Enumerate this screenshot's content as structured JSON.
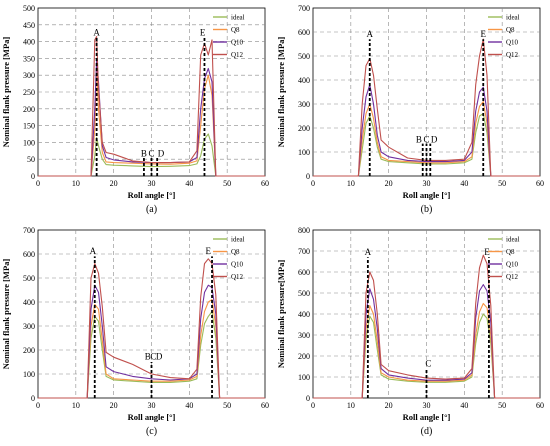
{
  "colors": {
    "ideal": "#9bbb59",
    "Q8": "#f79646",
    "Q10": "#7030a0",
    "Q12": "#c0504d",
    "grid": "#8a8a8a",
    "axis": "#000000",
    "marker": "#000000"
  },
  "chart_data": [
    {
      "type": "line",
      "panel_label": "(a)",
      "xlabel": "Roll angle [°]",
      "ylabel": "Nominal flank pressure [MPa]",
      "xlim": [
        0,
        60
      ],
      "ylim": [
        0,
        500
      ],
      "xticks": [
        0,
        10,
        20,
        30,
        40,
        50,
        60
      ],
      "yticks": [
        0,
        50,
        100,
        150,
        200,
        250,
        300,
        350,
        400,
        450,
        500
      ],
      "grid": "dashed",
      "legend_position": "top-right",
      "annotations": [
        {
          "text": "A",
          "x": 15.5,
          "y": 418
        },
        {
          "text": "B",
          "x": 28,
          "y": 58
        },
        {
          "text": "C",
          "x": 30,
          "y": 58
        },
        {
          "text": "D",
          "x": 32.5,
          "y": 58
        },
        {
          "text": "E",
          "x": 43.5,
          "y": 418
        }
      ],
      "markers": [
        {
          "x": 15.5,
          "y0": 0,
          "y1": 412
        },
        {
          "x": 28,
          "y0": 0,
          "y1": 55
        },
        {
          "x": 30,
          "y0": 0,
          "y1": 55
        },
        {
          "x": 31.5,
          "y0": 0,
          "y1": 55
        },
        {
          "x": 44,
          "y0": 0,
          "y1": 412
        }
      ],
      "series": [
        {
          "name": "ideal",
          "color_key": "ideal",
          "x": [
            0,
            13,
            14,
            15,
            15.5,
            16,
            17,
            18,
            20,
            25,
            30,
            35,
            40,
            42,
            43,
            44,
            45,
            46,
            47,
            60
          ],
          "y": [
            0,
            0,
            0,
            60,
            115,
            90,
            50,
            34,
            32,
            30,
            28,
            29,
            31,
            36,
            60,
            110,
            125,
            90,
            0,
            0
          ]
        },
        {
          "name": "Q8",
          "color_key": "Q8",
          "x": [
            0,
            13,
            14,
            15,
            15.5,
            16,
            17,
            18,
            20,
            25,
            30,
            35,
            40,
            42,
            43,
            44,
            45,
            46,
            47,
            60
          ],
          "y": [
            0,
            0,
            0,
            140,
            330,
            200,
            70,
            42,
            40,
            38,
            36,
            35,
            38,
            45,
            150,
            260,
            300,
            240,
            0,
            0
          ]
        },
        {
          "name": "Q10",
          "color_key": "Q10",
          "x": [
            0,
            13,
            14,
            15,
            15.5,
            16,
            17,
            18,
            20,
            25,
            30,
            35,
            40,
            42,
            43,
            44,
            45,
            46,
            47,
            60
          ],
          "y": [
            0,
            0,
            0,
            200,
            345,
            280,
            90,
            55,
            48,
            42,
            40,
            40,
            42,
            55,
            200,
            290,
            320,
            280,
            0,
            0
          ]
        },
        {
          "name": "Q12",
          "color_key": "Q12",
          "x": [
            0,
            13,
            14,
            15,
            15.5,
            16,
            17,
            18,
            20,
            25,
            30,
            35,
            40,
            42,
            43,
            44,
            45,
            46,
            47,
            60
          ],
          "y": [
            0,
            0,
            0,
            405,
            415,
            260,
            100,
            70,
            65,
            45,
            40,
            40,
            42,
            75,
            360,
            395,
            360,
            405,
            0,
            0
          ]
        }
      ]
    },
    {
      "type": "line",
      "panel_label": "(b)",
      "xlabel": "Roll angle [°]",
      "ylabel": "Nominal flank pressure [MPa]",
      "xlim": [
        0,
        60
      ],
      "ylim": [
        0,
        700
      ],
      "xticks": [
        0,
        10,
        20,
        30,
        40,
        50,
        60
      ],
      "yticks": [
        0,
        100,
        200,
        300,
        400,
        500,
        600,
        700
      ],
      "grid": "dashed",
      "legend_position": "top-right",
      "annotations": [
        {
          "text": "A",
          "x": 15,
          "y": 580
        },
        {
          "text": "B",
          "x": 28,
          "y": 140
        },
        {
          "text": "C",
          "x": 30,
          "y": 140
        },
        {
          "text": "D",
          "x": 32,
          "y": 140
        },
        {
          "text": "E",
          "x": 45,
          "y": 580
        }
      ],
      "markers": [
        {
          "x": 15,
          "y0": 0,
          "y1": 570
        },
        {
          "x": 29,
          "y0": 0,
          "y1": 135
        },
        {
          "x": 30,
          "y0": 0,
          "y1": 135
        },
        {
          "x": 31,
          "y0": 0,
          "y1": 135
        },
        {
          "x": 45,
          "y0": 0,
          "y1": 570
        }
      ],
      "series": [
        {
          "name": "ideal",
          "color_key": "ideal",
          "x": [
            0,
            11,
            12,
            13,
            14,
            15,
            16,
            17,
            18,
            20,
            25,
            30,
            35,
            40,
            42,
            43,
            44,
            45,
            46,
            47,
            60
          ],
          "y": [
            0,
            0,
            0,
            110,
            220,
            250,
            200,
            120,
            70,
            60,
            55,
            50,
            50,
            55,
            70,
            180,
            250,
            260,
            180,
            0,
            0
          ]
        },
        {
          "name": "Q8",
          "color_key": "Q8",
          "x": [
            0,
            11,
            12,
            13,
            14,
            15,
            16,
            17,
            18,
            20,
            25,
            30,
            35,
            40,
            42,
            43,
            44,
            45,
            46,
            47,
            60
          ],
          "y": [
            0,
            0,
            0,
            150,
            260,
            300,
            240,
            140,
            80,
            65,
            60,
            55,
            55,
            60,
            80,
            220,
            290,
            310,
            220,
            0,
            0
          ]
        },
        {
          "name": "Q10",
          "color_key": "Q10",
          "x": [
            0,
            11,
            12,
            13,
            14,
            15,
            16,
            17,
            18,
            20,
            25,
            30,
            35,
            40,
            42,
            43,
            44,
            45,
            46,
            47,
            60
          ],
          "y": [
            0,
            0,
            0,
            200,
            330,
            380,
            300,
            170,
            100,
            80,
            65,
            60,
            60,
            65,
            100,
            270,
            350,
            370,
            270,
            0,
            0
          ]
        },
        {
          "name": "Q12",
          "color_key": "Q12",
          "x": [
            0,
            11,
            12,
            13,
            14,
            15,
            16,
            17,
            18,
            20,
            25,
            30,
            35,
            40,
            42,
            43,
            44,
            45,
            46,
            47,
            60
          ],
          "y": [
            0,
            0,
            0,
            300,
            460,
            490,
            420,
            280,
            150,
            120,
            75,
            65,
            65,
            70,
            140,
            380,
            500,
            570,
            420,
            0,
            0
          ]
        }
      ]
    },
    {
      "type": "line",
      "panel_label": "(c)",
      "xlabel": "Roll angle [°]",
      "ylabel": "Nominal flank pressure [MPa]",
      "xlim": [
        0,
        60
      ],
      "ylim": [
        0,
        700
      ],
      "xticks": [
        0,
        10,
        20,
        30,
        40,
        50,
        60
      ],
      "yticks": [
        0,
        100,
        200,
        300,
        400,
        500,
        600,
        700
      ],
      "grid": "dashed",
      "legend_position": "top-right",
      "annotations": [
        {
          "text": "A",
          "x": 14.5,
          "y": 600
        },
        {
          "text": "B",
          "x": 29,
          "y": 160
        },
        {
          "text": "C",
          "x": 30.5,
          "y": 160
        },
        {
          "text": "D",
          "x": 32,
          "y": 160
        },
        {
          "text": "E",
          "x": 45,
          "y": 600
        }
      ],
      "markers": [
        {
          "x": 15,
          "y0": 0,
          "y1": 590
        },
        {
          "x": 30,
          "y0": 0,
          "y1": 150
        },
        {
          "x": 46,
          "y0": 0,
          "y1": 590
        }
      ],
      "series": [
        {
          "name": "ideal",
          "color_key": "ideal",
          "x": [
            0,
            12,
            13,
            14,
            15,
            16,
            17,
            18,
            20,
            25,
            30,
            35,
            40,
            42,
            43,
            44,
            45,
            46,
            47,
            48,
            60
          ],
          "y": [
            0,
            0,
            0,
            250,
            340,
            320,
            200,
            90,
            75,
            70,
            65,
            65,
            70,
            80,
            220,
            310,
            340,
            360,
            250,
            0,
            0
          ]
        },
        {
          "name": "Q8",
          "color_key": "Q8",
          "x": [
            0,
            12,
            13,
            14,
            15,
            16,
            17,
            18,
            20,
            25,
            30,
            35,
            40,
            42,
            43,
            44,
            45,
            46,
            47,
            48,
            60
          ],
          "y": [
            0,
            0,
            0,
            300,
            390,
            370,
            240,
            100,
            80,
            75,
            70,
            70,
            75,
            90,
            260,
            360,
            400,
            410,
            300,
            0,
            0
          ]
        },
        {
          "name": "Q10",
          "color_key": "Q10",
          "x": [
            0,
            12,
            13,
            14,
            15,
            16,
            17,
            18,
            20,
            25,
            30,
            35,
            40,
            42,
            43,
            44,
            45,
            46,
            47,
            48,
            60
          ],
          "y": [
            0,
            0,
            0,
            370,
            470,
            440,
            300,
            130,
            110,
            90,
            80,
            75,
            80,
            100,
            330,
            440,
            470,
            460,
            350,
            0,
            0
          ]
        },
        {
          "name": "Q12",
          "color_key": "Q12",
          "x": [
            0,
            12,
            13,
            14,
            15,
            16,
            17,
            18,
            20,
            25,
            30,
            35,
            40,
            42,
            43,
            44,
            45,
            46,
            47,
            48,
            60
          ],
          "y": [
            0,
            0,
            0,
            500,
            560,
            520,
            380,
            190,
            170,
            140,
            100,
            85,
            80,
            120,
            420,
            560,
            580,
            560,
            430,
            0,
            0
          ]
        }
      ]
    },
    {
      "type": "line",
      "panel_label": "(d)",
      "xlabel": "Roll angle [°]",
      "ylabel": "Nominal flank pressure[MPa]",
      "xlim": [
        0,
        60
      ],
      "ylim": [
        0,
        800
      ],
      "xticks": [
        0,
        10,
        20,
        30,
        40,
        50,
        60
      ],
      "yticks": [
        0,
        100,
        200,
        300,
        400,
        500,
        600,
        700,
        800
      ],
      "grid": "dashed",
      "legend_position": "top-right",
      "annotations": [
        {
          "text": "A",
          "x": 14.5,
          "y": 680
        },
        {
          "text": "C",
          "x": 30.5,
          "y": 150
        },
        {
          "text": "E",
          "x": 46,
          "y": 680
        }
      ],
      "markers": [
        {
          "x": 14.5,
          "y0": 0,
          "y1": 670
        },
        {
          "x": 30,
          "y0": 0,
          "y1": 140
        },
        {
          "x": 46.5,
          "y0": 0,
          "y1": 670
        }
      ],
      "series": [
        {
          "name": "ideal",
          "color_key": "ideal",
          "x": [
            0,
            12,
            13,
            14,
            15,
            16,
            17,
            18,
            20,
            25,
            30,
            35,
            40,
            42,
            43,
            44,
            45,
            46,
            47,
            48,
            60
          ],
          "y": [
            0,
            0,
            0,
            280,
            390,
            360,
            230,
            110,
            90,
            80,
            75,
            75,
            80,
            100,
            260,
            360,
            400,
            380,
            260,
            0,
            0
          ]
        },
        {
          "name": "Q8",
          "color_key": "Q8",
          "x": [
            0,
            12,
            13,
            14,
            15,
            16,
            17,
            18,
            20,
            25,
            30,
            35,
            40,
            42,
            43,
            44,
            45,
            46,
            47,
            48,
            60
          ],
          "y": [
            0,
            0,
            0,
            330,
            440,
            400,
            270,
            120,
            100,
            85,
            80,
            80,
            85,
            110,
            300,
            410,
            450,
            430,
            300,
            0,
            0
          ]
        },
        {
          "name": "Q10",
          "color_key": "Q10",
          "x": [
            0,
            12,
            13,
            14,
            15,
            16,
            17,
            18,
            20,
            25,
            30,
            35,
            40,
            42,
            43,
            44,
            45,
            46,
            47,
            48,
            60
          ],
          "y": [
            0,
            0,
            0,
            400,
            520,
            470,
            330,
            140,
            110,
            95,
            85,
            85,
            90,
            120,
            380,
            510,
            540,
            510,
            360,
            0,
            0
          ]
        },
        {
          "name": "Q12",
          "color_key": "Q12",
          "x": [
            0,
            12,
            13,
            14,
            15,
            16,
            17,
            18,
            20,
            25,
            30,
            35,
            40,
            42,
            43,
            44,
            45,
            46,
            47,
            48,
            60
          ],
          "y": [
            0,
            0,
            0,
            500,
            600,
            560,
            400,
            160,
            130,
            110,
            95,
            90,
            95,
            140,
            450,
            620,
            680,
            640,
            440,
            0,
            0
          ]
        }
      ]
    }
  ]
}
